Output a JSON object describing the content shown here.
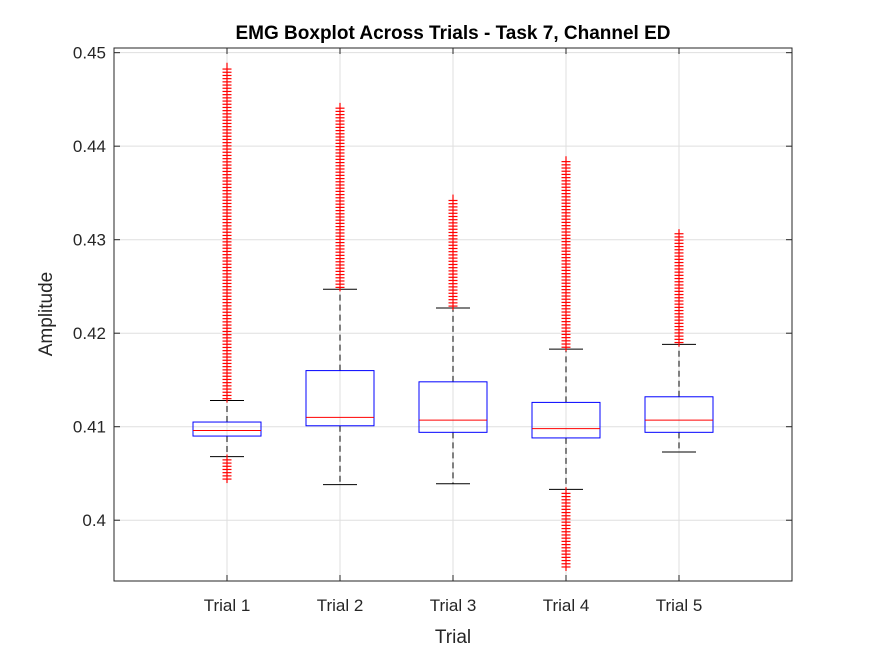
{
  "chart_data": {
    "type": "box",
    "title": "EMG Boxplot Across Trials - Task 7, Channel ED",
    "xlabel": "Trial",
    "ylabel": "Amplitude",
    "categories": [
      "Trial 1",
      "Trial 2",
      "Trial 3",
      "Trial 4",
      "Trial 5"
    ],
    "ylim": [
      0.3935,
      0.4505
    ],
    "yticks": [
      0.4,
      0.41,
      0.42,
      0.43,
      0.44,
      0.45
    ],
    "ytick_labels": [
      "0.4",
      "0.41",
      "0.42",
      "0.43",
      "0.44",
      "0.45"
    ],
    "grid": true,
    "boxes": [
      {
        "name": "Trial 1",
        "whisker_low": 0.4068,
        "q1": 0.409,
        "median": 0.4096,
        "q3": 0.4105,
        "whisker_high": 0.4128,
        "outliers_high": [
          0.413,
          0.4485
        ],
        "outliers_low": [
          0.4044,
          0.4066
        ]
      },
      {
        "name": "Trial 2",
        "whisker_low": 0.4038,
        "q1": 0.4101,
        "median": 0.411,
        "q3": 0.416,
        "whisker_high": 0.4247,
        "outliers_high": [
          0.4249,
          0.4442
        ],
        "outliers_low": null
      },
      {
        "name": "Trial 3",
        "whisker_low": 0.4039,
        "q1": 0.4094,
        "median": 0.4107,
        "q3": 0.4148,
        "whisker_high": 0.4227,
        "outliers_high": [
          0.4229,
          0.4344
        ],
        "outliers_low": null
      },
      {
        "name": "Trial 4",
        "whisker_low": 0.4033,
        "q1": 0.4088,
        "median": 0.4098,
        "q3": 0.4126,
        "whisker_high": 0.4183,
        "outliers_high": [
          0.4185,
          0.4385
        ],
        "outliers_low": [
          0.395,
          0.4031
        ]
      },
      {
        "name": "Trial 5",
        "whisker_low": 0.4073,
        "q1": 0.4094,
        "median": 0.4107,
        "q3": 0.4132,
        "whisker_high": 0.4188,
        "outliers_high": [
          0.419,
          0.4307
        ],
        "outliers_low": null
      }
    ],
    "colors": {
      "box": "#0000ff",
      "median": "#ff0000",
      "outlier": "#ff0000",
      "whisker": "#000000",
      "grid": "#dfdfdf",
      "axis": "#262626"
    },
    "outlier_marker": "+"
  }
}
